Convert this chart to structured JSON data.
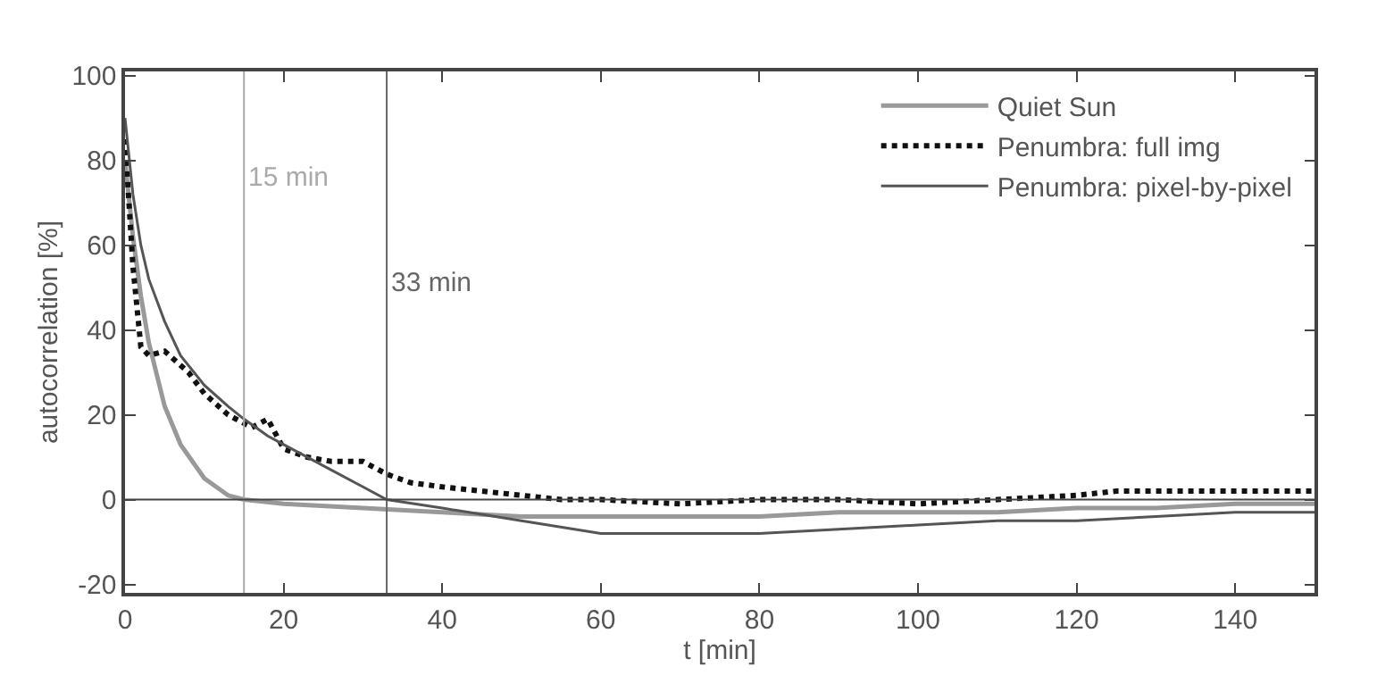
{
  "chart_data": {
    "type": "line",
    "xlabel": "t [min]",
    "ylabel": "autocorrelation [%]",
    "xlim": [
      0,
      150
    ],
    "ylim": [
      -22,
      101
    ],
    "xticks": [
      0,
      20,
      40,
      60,
      80,
      100,
      120,
      140
    ],
    "yticks": [
      -20,
      0,
      20,
      40,
      60,
      80,
      100
    ],
    "legend": "top right",
    "marker": "none",
    "series": [
      {
        "name": "Quiet Sun",
        "color": "#999999",
        "line_style": "solid",
        "x": [
          0,
          1,
          2,
          3,
          5,
          7,
          10,
          13,
          15,
          20,
          30,
          40,
          50,
          60,
          70,
          80,
          90,
          100,
          110,
          120,
          130,
          140,
          150
        ],
        "values": [
          80,
          62,
          48,
          37,
          22,
          13,
          5,
          1,
          0,
          -1,
          -2,
          -3,
          -4,
          -4,
          -4,
          -4,
          -3,
          -3,
          -3,
          -2,
          -2,
          -1,
          -1
        ]
      },
      {
        "name": "Penumbra: full img",
        "color": "#111111",
        "line_style": "dotted",
        "x": [
          0,
          1,
          2,
          3,
          5,
          8,
          10,
          13,
          16,
          18,
          20,
          23,
          26,
          30,
          33,
          36,
          40,
          45,
          50,
          55,
          60,
          70,
          80,
          90,
          100,
          110,
          120,
          125,
          130,
          140,
          150
        ],
        "values": [
          85,
          55,
          36,
          34,
          35,
          30,
          25,
          20,
          17,
          19,
          12,
          10,
          9,
          9,
          6,
          4,
          3,
          2,
          1,
          0,
          0,
          -1,
          0,
          0,
          -1,
          0,
          1,
          2,
          2,
          2,
          2
        ]
      },
      {
        "name": "Penumbra: pixel-by-pixel",
        "color": "#555555",
        "line_style": "solid",
        "x": [
          0,
          1,
          2,
          3,
          5,
          7,
          10,
          13,
          15,
          18,
          20,
          25,
          30,
          33,
          40,
          50,
          60,
          70,
          80,
          90,
          100,
          110,
          120,
          130,
          140,
          150
        ],
        "values": [
          90,
          72,
          60,
          52,
          42,
          34,
          27,
          22,
          19,
          15,
          13,
          8,
          3,
          0,
          -2,
          -5,
          -8,
          -8,
          -8,
          -7,
          -6,
          -5,
          -5,
          -4,
          -3,
          -3
        ]
      }
    ],
    "ref_lines": [
      {
        "axis": "x",
        "value": 15,
        "label": "15 min",
        "color": "#aaaaaa"
      },
      {
        "axis": "x",
        "value": 33,
        "label": "33 min",
        "color": "#666666"
      },
      {
        "axis": "y",
        "value": 0,
        "color": "#444444"
      }
    ]
  }
}
